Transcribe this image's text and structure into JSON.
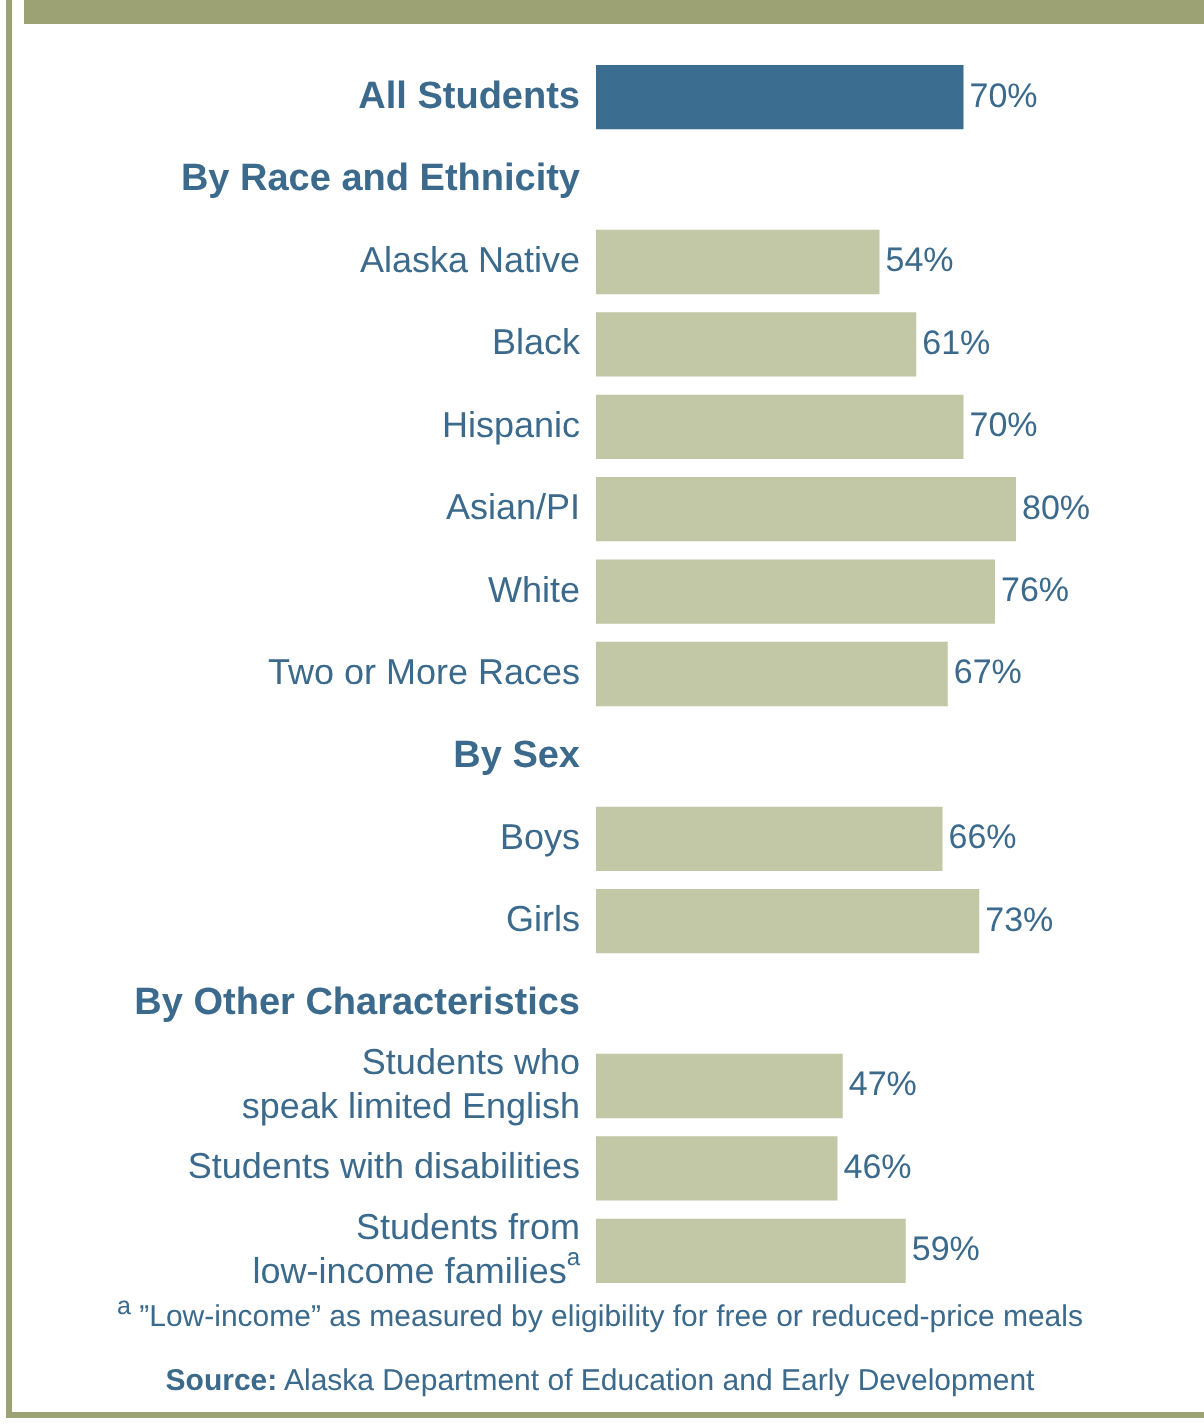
{
  "chart_data": {
    "type": "bar",
    "orientation": "horizontal",
    "categories": [
      "All Students",
      "By Race and Ethnicity",
      "Alaska Native",
      "Black",
      "Hispanic",
      "Asian/PI",
      "White",
      "Two or More Races",
      "By Sex",
      "Boys",
      "Girls",
      "By Other Characteristics",
      "Students who\nspeak limited English",
      "Students with disabilities",
      "Students from\nlow-income families$^{a}$"
    ],
    "values": [
      70,
      null,
      54,
      61,
      70,
      80,
      76,
      67,
      null,
      66,
      73,
      null,
      47,
      46,
      59
    ],
    "colors": [
      "#3a6d8f",
      "#c2c7a5",
      "#c2c7a5",
      "#c2c7a5",
      "#c2c7a5",
      "#c2c7a5",
      "#c2c7a5",
      "#c2c7a5",
      "#c2c7a5",
      "#c2c7a5",
      "#c2c7a5",
      "#c2c7a5",
      "#c2c7a5",
      "#c2c7a5",
      "#c2c7a5"
    ],
    "value_labels": [
      "70%",
      null,
      "54%",
      "61%",
      "70%",
      "80%",
      "76%",
      "67%",
      null,
      "66%",
      "73%",
      null,
      "47%",
      "46%",
      "59%"
    ],
    "tick_labels": "y",
    "legend": false,
    "annotations": [
      "$^{a}$ ”Low-income” as measured by eligibility for free or reduced-price meals",
      "Source: Alaska Department of Education and Early Development"
    ]
  }
}
